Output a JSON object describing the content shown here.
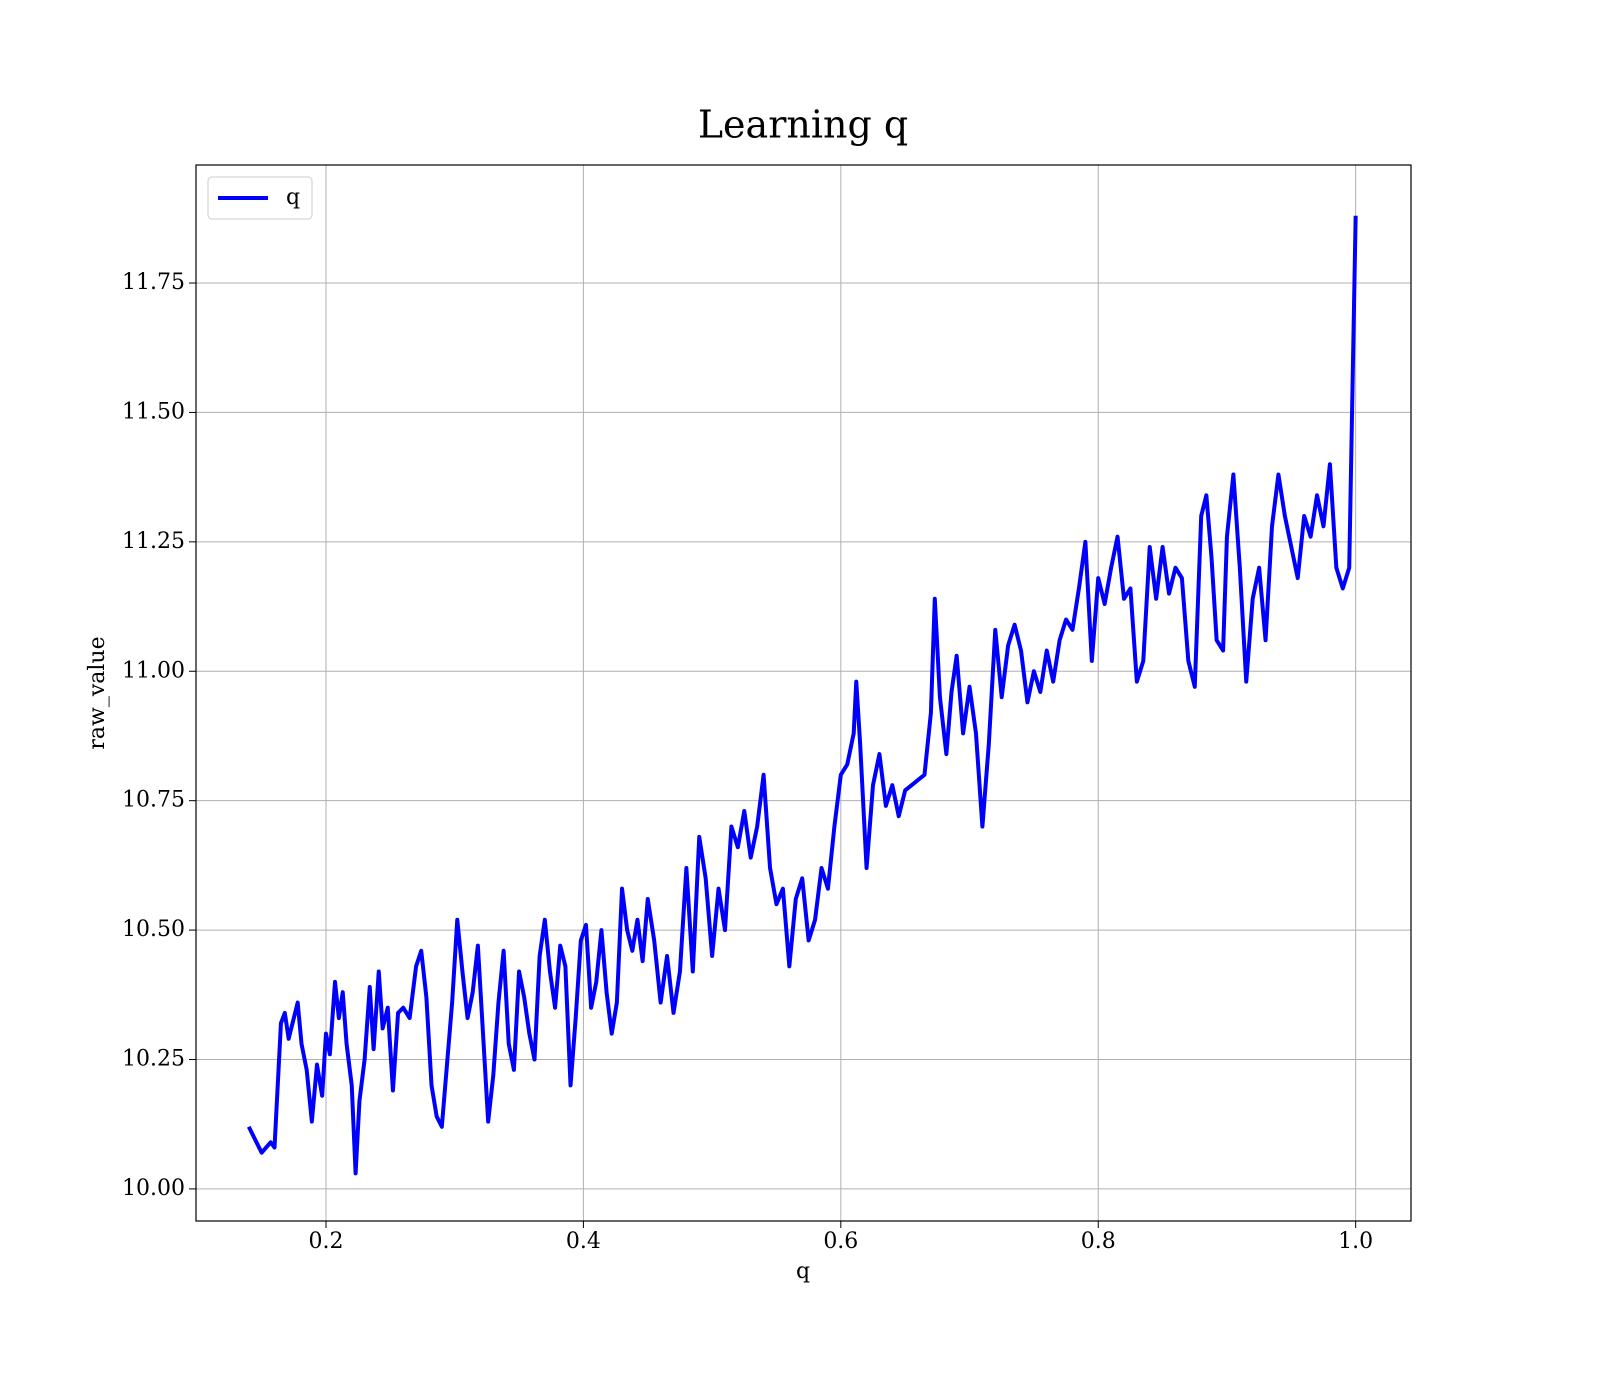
{
  "chart_data": {
    "type": "line",
    "title": "Learning q",
    "x_label": "q",
    "y_label": "raw_value",
    "x": [
      0.14,
      0.15,
      0.157,
      0.16,
      0.165,
      0.168,
      0.171,
      0.174,
      0.178,
      0.181,
      0.185,
      0.189,
      0.193,
      0.197,
      0.2,
      0.203,
      0.207,
      0.21,
      0.213,
      0.216,
      0.22,
      0.223,
      0.226,
      0.23,
      0.234,
      0.237,
      0.241,
      0.244,
      0.248,
      0.252,
      0.256,
      0.26,
      0.265,
      0.27,
      0.274,
      0.278,
      0.282,
      0.286,
      0.29,
      0.294,
      0.298,
      0.302,
      0.306,
      0.31,
      0.314,
      0.318,
      0.322,
      0.326,
      0.33,
      0.334,
      0.338,
      0.342,
      0.346,
      0.35,
      0.354,
      0.358,
      0.362,
      0.366,
      0.37,
      0.374,
      0.378,
      0.382,
      0.386,
      0.39,
      0.394,
      0.398,
      0.402,
      0.406,
      0.41,
      0.414,
      0.418,
      0.422,
      0.426,
      0.43,
      0.434,
      0.438,
      0.442,
      0.446,
      0.45,
      0.455,
      0.46,
      0.465,
      0.47,
      0.475,
      0.48,
      0.485,
      0.49,
      0.495,
      0.5,
      0.505,
      0.51,
      0.515,
      0.52,
      0.525,
      0.53,
      0.535,
      0.54,
      0.545,
      0.55,
      0.555,
      0.56,
      0.565,
      0.57,
      0.575,
      0.58,
      0.585,
      0.59,
      0.595,
      0.6,
      0.605,
      0.61,
      0.612,
      0.615,
      0.62,
      0.625,
      0.63,
      0.635,
      0.64,
      0.645,
      0.65,
      0.655,
      0.66,
      0.665,
      0.67,
      0.673,
      0.677,
      0.682,
      0.686,
      0.69,
      0.695,
      0.7,
      0.705,
      0.71,
      0.715,
      0.72,
      0.725,
      0.73,
      0.735,
      0.74,
      0.745,
      0.75,
      0.755,
      0.76,
      0.765,
      0.77,
      0.775,
      0.78,
      0.785,
      0.79,
      0.795,
      0.8,
      0.805,
      0.81,
      0.815,
      0.82,
      0.825,
      0.83,
      0.835,
      0.84,
      0.845,
      0.85,
      0.855,
      0.86,
      0.865,
      0.87,
      0.875,
      0.88,
      0.884,
      0.888,
      0.892,
      0.897,
      0.9,
      0.905,
      0.91,
      0.915,
      0.92,
      0.925,
      0.93,
      0.935,
      0.94,
      0.945,
      0.95,
      0.955,
      0.96,
      0.965,
      0.97,
      0.975,
      0.98,
      0.985,
      0.99,
      0.995,
      1.0
    ],
    "series": [
      {
        "name": "q",
        "color": "#0000ff",
        "values": [
          10.12,
          10.07,
          10.09,
          10.08,
          10.32,
          10.34,
          10.29,
          10.32,
          10.36,
          10.28,
          10.23,
          10.13,
          10.24,
          10.18,
          10.3,
          10.26,
          10.4,
          10.33,
          10.38,
          10.28,
          10.2,
          10.03,
          10.17,
          10.25,
          10.39,
          10.27,
          10.42,
          10.31,
          10.35,
          10.19,
          10.34,
          10.35,
          10.33,
          10.43,
          10.46,
          10.37,
          10.2,
          10.14,
          10.12,
          10.24,
          10.36,
          10.52,
          10.42,
          10.33,
          10.38,
          10.47,
          10.3,
          10.13,
          10.22,
          10.36,
          10.46,
          10.28,
          10.23,
          10.42,
          10.37,
          10.3,
          10.25,
          10.45,
          10.52,
          10.42,
          10.35,
          10.47,
          10.43,
          10.2,
          10.33,
          10.48,
          10.51,
          10.35,
          10.4,
          10.5,
          10.38,
          10.3,
          10.36,
          10.58,
          10.5,
          10.46,
          10.52,
          10.44,
          10.56,
          10.48,
          10.36,
          10.45,
          10.34,
          10.42,
          10.62,
          10.42,
          10.68,
          10.6,
          10.45,
          10.58,
          10.5,
          10.7,
          10.66,
          10.73,
          10.64,
          10.7,
          10.8,
          10.62,
          10.55,
          10.58,
          10.43,
          10.56,
          10.6,
          10.48,
          10.52,
          10.62,
          10.58,
          10.7,
          10.8,
          10.82,
          10.88,
          10.98,
          10.86,
          10.62,
          10.78,
          10.84,
          10.74,
          10.78,
          10.72,
          10.77,
          10.78,
          10.79,
          10.8,
          10.92,
          11.14,
          10.95,
          10.84,
          10.96,
          11.03,
          10.88,
          10.97,
          10.88,
          10.7,
          10.86,
          11.08,
          10.95,
          11.05,
          11.09,
          11.04,
          10.94,
          11.0,
          10.96,
          11.04,
          10.98,
          11.06,
          11.1,
          11.08,
          11.16,
          11.25,
          11.02,
          11.18,
          11.13,
          11.2,
          11.26,
          11.14,
          11.16,
          10.98,
          11.02,
          11.24,
          11.14,
          11.24,
          11.15,
          11.2,
          11.18,
          11.02,
          10.97,
          11.3,
          11.34,
          11.22,
          11.06,
          11.04,
          11.26,
          11.38,
          11.2,
          10.98,
          11.14,
          11.2,
          11.06,
          11.28,
          11.38,
          11.3,
          11.24,
          11.18,
          11.3,
          11.26,
          11.34,
          11.28,
          11.4,
          11.2,
          11.16,
          11.2,
          11.88
        ]
      }
    ],
    "xlim": [
      0.099,
      1.043
    ],
    "ylim": [
      9.938,
      11.978
    ],
    "xticks": [
      0.2,
      0.4,
      0.6,
      0.8,
      {
        "value": 1,
        "label": "1.0"
      }
    ],
    "yticks": [
      {
        "value": 10,
        "label": "10.00"
      },
      {
        "value": 10.25,
        "label": "10.25"
      },
      {
        "value": 10.5,
        "label": "10.50"
      },
      {
        "value": 10.75,
        "label": "10.75"
      },
      {
        "value": 11,
        "label": "11.00"
      },
      {
        "value": 11.25,
        "label": "11.25"
      },
      {
        "value": 11.5,
        "label": "11.50"
      },
      {
        "value": 11.75,
        "label": "11.75"
      }
    ],
    "grid": true,
    "legend": "upper left"
  }
}
